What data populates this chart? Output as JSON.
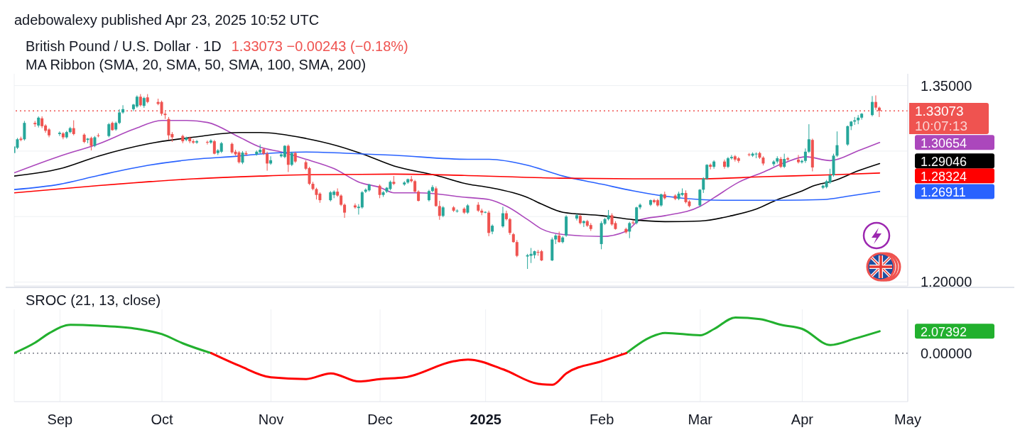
{
  "chart_data": [
    {
      "type": "candlestick",
      "title": "British Pound / U.S. Dollar · 1D",
      "subtitle": "1.33073 −0.00243 (−0.18%)",
      "annotations": [
        "adebowalexy published Apr 23, 2025 10:52 UTC",
        "MA Ribbon (SMA, 20, SMA, 50, SMA, 100, SMA, 200)",
        "10:07:13"
      ],
      "x": [
        "2024-08-20",
        "2024-08-21",
        "2024-08-22",
        "2024-08-23",
        "2024-08-26",
        "2024-08-27",
        "2024-08-28",
        "2024-08-29",
        "2024-08-30",
        "2024-09-02",
        "2024-09-03",
        "2024-09-04",
        "2024-09-05",
        "2024-09-06",
        "2024-09-09",
        "2024-09-10",
        "2024-09-11",
        "2024-09-12",
        "2024-09-13",
        "2024-09-16",
        "2024-09-17",
        "2024-09-18",
        "2024-09-19",
        "2024-09-20",
        "2024-09-23",
        "2024-09-24",
        "2024-09-25",
        "2024-09-26",
        "2024-09-27",
        "2024-09-30",
        "2024-10-01",
        "2024-10-02",
        "2024-10-03",
        "2024-10-04",
        "2024-10-07",
        "2024-10-08",
        "2024-10-09",
        "2024-10-10",
        "2024-10-11",
        "2024-10-14",
        "2024-10-15",
        "2024-10-16",
        "2024-10-17",
        "2024-10-18",
        "2024-10-21",
        "2024-10-22",
        "2024-10-23",
        "2024-10-24",
        "2024-10-25",
        "2024-10-28",
        "2024-10-29",
        "2024-10-30",
        "2024-10-31",
        "2024-11-01",
        "2024-11-04",
        "2024-11-05",
        "2024-11-06",
        "2024-11-07",
        "2024-11-08",
        "2024-11-11",
        "2024-11-12",
        "2024-11-13",
        "2024-11-14",
        "2024-11-15",
        "2024-11-18",
        "2024-11-19",
        "2024-11-20",
        "2024-11-21",
        "2024-11-22",
        "2024-11-25",
        "2024-11-26",
        "2024-11-27",
        "2024-11-28",
        "2024-11-29",
        "2024-12-02",
        "2024-12-03",
        "2024-12-04",
        "2024-12-05",
        "2024-12-06",
        "2024-12-09",
        "2024-12-10",
        "2024-12-11",
        "2024-12-12",
        "2024-12-13",
        "2024-12-16",
        "2024-12-17",
        "2024-12-18",
        "2024-12-19",
        "2024-12-20",
        "2024-12-23",
        "2024-12-24",
        "2024-12-26",
        "2024-12-27",
        "2024-12-30",
        "2024-12-31",
        "2025-01-01",
        "2025-01-02",
        "2025-01-03",
        "2025-01-06",
        "2025-01-07",
        "2025-01-08",
        "2025-01-09",
        "2025-01-10",
        "2025-01-13",
        "2025-01-14",
        "2025-01-15",
        "2025-01-16",
        "2025-01-17",
        "2025-01-20",
        "2025-01-21",
        "2025-01-22",
        "2025-01-23",
        "2025-01-24",
        "2025-01-27",
        "2025-01-28",
        "2025-01-29",
        "2025-01-30",
        "2025-01-31",
        "2025-02-03",
        "2025-02-04",
        "2025-02-05",
        "2025-02-06",
        "2025-02-07",
        "2025-02-10",
        "2025-02-11",
        "2025-02-12",
        "2025-02-13",
        "2025-02-14",
        "2025-02-17",
        "2025-02-18",
        "2025-02-19",
        "2025-02-20",
        "2025-02-21",
        "2025-02-24",
        "2025-02-25",
        "2025-02-26",
        "2025-02-27",
        "2025-02-28",
        "2025-03-03",
        "2025-03-04",
        "2025-03-05",
        "2025-03-06",
        "2025-03-07",
        "2025-03-10",
        "2025-03-11",
        "2025-03-12",
        "2025-03-13",
        "2025-03-14",
        "2025-03-17",
        "2025-03-18",
        "2025-03-19",
        "2025-03-20",
        "2025-03-21",
        "2025-03-24",
        "2025-03-25",
        "2025-03-26",
        "2025-03-27",
        "2025-03-28",
        "2025-03-31",
        "2025-04-01",
        "2025-04-02",
        "2025-04-03",
        "2025-04-04",
        "2025-04-07",
        "2025-04-08",
        "2025-04-09",
        "2025-04-10",
        "2025-04-11",
        "2025-04-14",
        "2025-04-15",
        "2025-04-16",
        "2025-04-17",
        "2025-04-18",
        "2025-04-21",
        "2025-04-22",
        "2025-04-23"
      ],
      "ohlc": [
        [
          1.2985,
          1.3045,
          1.2975,
          1.3035
        ],
        [
          1.3025,
          1.31,
          1.3015,
          1.309
        ],
        [
          1.3095,
          1.311,
          1.3075,
          1.3085
        ],
        [
          1.309,
          1.323,
          1.308,
          1.3215
        ],
        [
          1.3215,
          1.323,
          1.3185,
          1.3205
        ],
        [
          1.3195,
          1.3265,
          1.318,
          1.3255
        ],
        [
          1.325,
          1.3265,
          1.3175,
          1.319
        ],
        [
          1.3195,
          1.3205,
          1.314,
          1.3155
        ],
        [
          1.3165,
          1.3175,
          1.3105,
          1.312
        ],
        [
          1.313,
          1.315,
          1.3115,
          1.314
        ],
        [
          1.3135,
          1.3145,
          1.309,
          1.3105
        ],
        [
          1.3105,
          1.3155,
          1.3095,
          1.3145
        ],
        [
          1.3145,
          1.3185,
          1.3135,
          1.3175
        ],
        [
          1.3175,
          1.3235,
          1.312,
          1.313
        ],
        [
          1.3125,
          1.3135,
          1.306,
          1.307
        ],
        [
          1.3085,
          1.31,
          1.306,
          1.3095
        ],
        [
          1.31,
          1.311,
          1.3005,
          1.304
        ],
        [
          1.304,
          1.3115,
          1.303,
          1.3105
        ],
        [
          1.312,
          1.3135,
          1.3105,
          1.3115
        ],
        [
          1.3115,
          1.3215,
          1.3105,
          1.3205
        ],
        [
          1.3215,
          1.3225,
          1.3155,
          1.316
        ],
        [
          1.3165,
          1.3225,
          1.3155,
          1.3215
        ],
        [
          1.3215,
          1.332,
          1.3205,
          1.3295
        ],
        [
          1.3295,
          1.335,
          1.3285,
          1.332
        ],
        [
          1.332,
          1.336,
          1.3305,
          1.3355
        ],
        [
          1.334,
          1.3425,
          1.333,
          1.3415
        ],
        [
          1.3415,
          1.3435,
          1.334,
          1.335
        ],
        [
          1.3345,
          1.3415,
          1.333,
          1.3405
        ],
        [
          1.341,
          1.3435,
          1.3365,
          1.3375
        ],
        [
          1.3375,
          1.34,
          1.335,
          1.336
        ],
        [
          1.3375,
          1.3385,
          1.327,
          1.3285
        ],
        [
          1.3285,
          1.33,
          1.3245,
          1.3275
        ],
        [
          1.3245,
          1.326,
          1.3085,
          1.312
        ],
        [
          1.313,
          1.3145,
          1.307,
          1.3105
        ],
        [
          1.3115,
          1.3125,
          1.306,
          1.3075
        ],
        [
          1.3085,
          1.311,
          1.3075,
          1.31
        ],
        [
          1.31,
          1.311,
          1.306,
          1.3075
        ],
        [
          1.3075,
          1.309,
          1.3055,
          1.3065
        ],
        [
          1.3065,
          1.3085,
          1.3055,
          1.3075
        ],
        [
          1.307,
          1.308,
          1.305,
          1.3065
        ],
        [
          1.3065,
          1.309,
          1.3055,
          1.308
        ],
        [
          1.3075,
          1.3085,
          1.2975,
          1.298
        ],
        [
          1.2985,
          1.3015,
          1.297,
          1.3005
        ],
        [
          1.2995,
          1.307,
          1.2985,
          1.306
        ],
        [
          1.3055,
          1.3065,
          1.298,
          1.299
        ],
        [
          1.2995,
          1.301,
          1.2965,
          1.2975
        ],
        [
          1.299,
          1.3,
          1.2905,
          1.2915
        ],
        [
          1.2912,
          1.3,
          1.29,
          1.2988
        ],
        [
          1.2985,
          1.3,
          1.2965,
          1.2975
        ],
        [
          1.2975,
          1.3005,
          1.2965,
          1.2995
        ],
        [
          1.299,
          1.305,
          1.298,
          1.301
        ],
        [
          1.3015,
          1.3025,
          1.297,
          1.298
        ],
        [
          1.298,
          1.2995,
          1.285,
          1.2905
        ],
        [
          1.2905,
          1.296,
          1.2895,
          1.293
        ],
        [
          1.296,
          1.299,
          1.295,
          1.2975
        ],
        [
          1.2955,
          1.3045,
          1.2945,
          1.304
        ],
        [
          1.304,
          1.305,
          1.284,
          1.2895
        ],
        [
          1.2895,
          1.2995,
          1.2885,
          1.2985
        ],
        [
          1.2985,
          1.2995,
          1.291,
          1.292
        ],
        [
          1.2915,
          1.293,
          1.2855,
          1.2865
        ],
        [
          1.287,
          1.288,
          1.274,
          1.275
        ],
        [
          1.275,
          1.2765,
          1.27,
          1.271
        ],
        [
          1.271,
          1.272,
          1.263,
          1.2665
        ],
        [
          1.2675,
          1.2685,
          1.2605,
          1.2625
        ],
        [
          1.2625,
          1.2695,
          1.2615,
          1.2685
        ],
        [
          1.2665,
          1.27,
          1.264,
          1.269
        ],
        [
          1.269,
          1.2715,
          1.265,
          1.266
        ],
        [
          1.266,
          1.267,
          1.258,
          1.259
        ],
        [
          1.259,
          1.26,
          1.249,
          1.253
        ],
        [
          1.2585,
          1.26,
          1.256,
          1.257
        ],
        [
          1.2565,
          1.2595,
          1.2515,
          1.2575
        ],
        [
          1.257,
          1.2695,
          1.256,
          1.2685
        ],
        [
          1.269,
          1.2715,
          1.268,
          1.2705
        ],
        [
          1.27,
          1.275,
          1.269,
          1.2745
        ],
        [
          1.2735,
          1.2745,
          1.264,
          1.2665
        ],
        [
          1.2665,
          1.2695,
          1.265,
          1.2685
        ],
        [
          1.269,
          1.2725,
          1.268,
          1.272
        ],
        [
          1.271,
          1.2775,
          1.27,
          1.2765
        ],
        [
          1.2765,
          1.281,
          1.274,
          1.275
        ],
        [
          1.2745,
          1.277,
          1.2735,
          1.276
        ],
        [
          1.276,
          1.279,
          1.275,
          1.2785
        ],
        [
          1.2785,
          1.281,
          1.276,
          1.277
        ],
        [
          1.277,
          1.278,
          1.2685,
          1.269
        ],
        [
          1.269,
          1.27,
          1.2615,
          1.262
        ],
        [
          1.2625,
          1.2705,
          1.2615,
          1.2695
        ],
        [
          1.2695,
          1.274,
          1.2685,
          1.2725
        ],
        [
          1.2715,
          1.273,
          1.2575,
          1.258
        ],
        [
          1.258,
          1.262,
          1.2475,
          1.2505
        ],
        [
          1.2505,
          1.258,
          1.2495,
          1.257
        ],
        [
          1.257,
          1.258,
          1.2535,
          1.2545
        ],
        [
          1.254,
          1.2555,
          1.253,
          1.2545
        ],
        [
          1.256,
          1.257,
          1.252,
          1.253
        ],
        [
          1.253,
          1.2595,
          1.252,
          1.2585
        ],
        [
          1.259,
          1.261,
          1.2535,
          1.2545
        ],
        [
          1.2545,
          1.256,
          1.251,
          1.253
        ],
        [
          1.253,
          1.254,
          1.2525,
          1.2535
        ],
        [
          1.253,
          1.2545,
          1.235,
          1.2375
        ],
        [
          1.2385,
          1.244,
          1.2365,
          1.243
        ],
        [
          1.2425,
          1.2575,
          1.2415,
          1.2525
        ],
        [
          1.2525,
          1.2545,
          1.247,
          1.248
        ],
        [
          1.248,
          1.249,
          1.236,
          1.2375
        ],
        [
          1.2365,
          1.2375,
          1.23,
          1.2305
        ],
        [
          1.2305,
          1.232,
          1.219,
          1.22
        ],
        [
          1.2195,
          1.2215,
          1.21,
          1.2205
        ],
        [
          1.22,
          1.226,
          1.2145,
          1.2215
        ],
        [
          1.2205,
          1.224,
          1.218,
          1.2235
        ],
        [
          1.223,
          1.2245,
          1.22,
          1.2225
        ],
        [
          1.2235,
          1.2245,
          1.216,
          1.2165
        ],
        [
          1.2165,
          1.234,
          1.216,
          1.2325
        ],
        [
          1.2325,
          1.2365,
          1.229,
          1.2355
        ],
        [
          1.2355,
          1.2385,
          1.23,
          1.2305
        ],
        [
          1.2305,
          1.235,
          1.2295,
          1.234
        ],
        [
          1.2355,
          1.251,
          1.2345,
          1.25
        ],
        [
          1.2485,
          1.252,
          1.247,
          1.251
        ],
        [
          1.2505,
          1.2515,
          1.244,
          1.245
        ],
        [
          1.245,
          1.247,
          1.242,
          1.2465
        ],
        [
          1.2465,
          1.2475,
          1.242,
          1.243
        ],
        [
          1.2435,
          1.245,
          1.239,
          1.2405
        ],
        [
          1.229,
          1.2465,
          1.225,
          1.245
        ],
        [
          1.2445,
          1.249,
          1.2435,
          1.248
        ],
        [
          1.248,
          1.255,
          1.247,
          1.251
        ],
        [
          1.251,
          1.2525,
          1.243,
          1.244
        ],
        [
          1.245,
          1.2465,
          1.24,
          1.2405
        ],
        [
          1.2405,
          1.2415,
          1.237,
          1.238
        ],
        [
          1.2385,
          1.246,
          1.2335,
          1.245
        ],
        [
          1.2455,
          1.247,
          1.244,
          1.245
        ],
        [
          1.245,
          1.2575,
          1.244,
          1.257
        ],
        [
          1.257,
          1.26,
          1.2555,
          1.259
        ],
        [
          1.259,
          1.263,
          1.258,
          1.2625
        ],
        [
          1.2625,
          1.2635,
          1.26,
          1.261
        ],
        [
          1.2625,
          1.2635,
          1.2575,
          1.2585
        ],
        [
          1.2585,
          1.2675,
          1.2575,
          1.267
        ],
        [
          1.267,
          1.269,
          1.263,
          1.264
        ],
        [
          1.266,
          1.267,
          1.2625,
          1.2635
        ],
        [
          1.2635,
          1.269,
          1.2625,
          1.2675
        ],
        [
          1.2665,
          1.2715,
          1.2655,
          1.268
        ],
        [
          1.268,
          1.27,
          1.26,
          1.261
        ],
        [
          1.2615,
          1.2625,
          1.257,
          1.258
        ],
        [
          1.2585,
          1.271,
          1.2575,
          1.2705
        ],
        [
          1.2705,
          1.28,
          1.268,
          1.279
        ],
        [
          1.279,
          1.29,
          1.278,
          1.2895
        ],
        [
          1.2895,
          1.2905,
          1.286,
          1.288
        ],
        [
          1.288,
          1.293,
          1.2865,
          1.292
        ],
        [
          1.292,
          1.2935,
          1.2865,
          1.288
        ],
        [
          1.288,
          1.2955,
          1.287,
          1.2945
        ],
        [
          1.2945,
          1.297,
          1.2935,
          1.2955
        ],
        [
          1.296,
          1.297,
          1.292,
          1.2935
        ],
        [
          1.2945,
          1.2955,
          1.291,
          1.2925
        ],
        [
          1.2975,
          1.2985,
          1.296,
          1.297
        ],
        [
          1.2965,
          1.299,
          1.2955,
          1.298
        ],
        [
          1.2975,
          1.299,
          1.2945,
          1.298
        ],
        [
          1.2985,
          1.2995,
          1.294,
          1.295
        ],
        [
          1.295,
          1.296,
          1.289,
          1.2905
        ],
        [
          1.29,
          1.293,
          1.2885,
          1.292
        ],
        [
          1.292,
          1.296,
          1.2905,
          1.2945
        ],
        [
          1.294,
          1.2955,
          1.287,
          1.288
        ],
        [
          1.288,
          1.298,
          1.287,
          1.294
        ],
        [
          1.2945,
          1.2955,
          1.2925,
          1.2935
        ],
        [
          1.2935,
          1.297,
          1.2905,
          1.2915
        ],
        [
          1.2915,
          1.2935,
          1.2905,
          1.2925
        ],
        [
          1.2925,
          1.302,
          1.291,
          1.2995
        ],
        [
          1.2995,
          1.3205,
          1.2985,
          1.309
        ],
        [
          1.3085,
          1.3095,
          1.2845,
          1.2875
        ],
        [
          1.272,
          1.2745,
          1.271,
          1.2735
        ],
        [
          1.2725,
          1.278,
          1.2715,
          1.277
        ],
        [
          1.276,
          1.2865,
          1.275,
          1.2815
        ],
        [
          1.2815,
          1.298,
          1.2805,
          1.2965
        ],
        [
          1.2965,
          1.315,
          1.2955,
          1.3045
        ],
        [
          1.305,
          1.3195,
          1.304,
          1.319
        ],
        [
          1.319,
          1.323,
          1.316,
          1.3225
        ],
        [
          1.3225,
          1.326,
          1.32,
          1.3235
        ],
        [
          1.3235,
          1.3275,
          1.3205,
          1.3255
        ],
        [
          1.3255,
          1.329,
          1.324,
          1.3285
        ],
        [
          1.3275,
          1.342,
          1.3265,
          1.3375
        ],
        [
          1.3375,
          1.3425,
          1.3315,
          1.33316
        ],
        [
          1.33316,
          1.334,
          1.326,
          1.33073
        ]
      ],
      "series": [
        {
          "type": "line",
          "color": "#ab47bc",
          "x": [
            "2024-08-20",
            "2024-09-02",
            "2024-09-13",
            "2024-09-23",
            "2024-10-01",
            "2024-10-08",
            "2024-10-14",
            "2024-10-23",
            "2024-10-29",
            "2024-11-04",
            "2024-11-11",
            "2024-11-19",
            "2024-11-26",
            "2024-12-02",
            "2024-12-06",
            "2024-12-13",
            "2024-12-27",
            "2025-01-02",
            "2025-01-07",
            "2025-01-13",
            "2025-01-17",
            "2025-01-23",
            "2025-02-03",
            "2025-02-10",
            "2025-02-14",
            "2025-02-21",
            "2025-03-03",
            "2025-03-07",
            "2025-03-14",
            "2025-03-21",
            "2025-03-27",
            "2025-04-02",
            "2025-04-09",
            "2025-04-17",
            "2025-04-23"
          ],
          "values": [
            1.2834,
            1.2962,
            1.3055,
            1.3167,
            1.3234,
            1.3234,
            1.3218,
            1.3106,
            1.3029,
            1.2993,
            1.2937,
            1.2865,
            1.2763,
            1.2722,
            1.2681,
            1.2681,
            1.2645,
            1.263,
            1.2578,
            1.2476,
            1.2404,
            1.2363,
            1.2348,
            1.2389,
            1.2476,
            1.2507,
            1.2578,
            1.2645,
            1.2763,
            1.284,
            1.2911,
            1.2957,
            1.2927,
            1.3003,
            1.30654
          ]
        },
        {
          "type": "line",
          "color": "#000000",
          "x": [
            "2024-08-20",
            "2024-09-02",
            "2024-09-13",
            "2024-09-27",
            "2024-10-10",
            "2024-10-23",
            "2024-10-29",
            "2024-11-11",
            "2024-11-20",
            "2024-11-27",
            "2024-12-06",
            "2024-12-18",
            "2024-12-27",
            "2025-01-02",
            "2025-01-13",
            "2025-01-17",
            "2025-01-23",
            "2025-02-03",
            "2025-02-12",
            "2025-02-21",
            "2025-03-03",
            "2025-03-12",
            "2025-03-19",
            "2025-03-25",
            "2025-04-01",
            "2025-04-04",
            "2025-04-10",
            "2025-04-17",
            "2025-04-23"
          ],
          "values": [
            1.2809,
            1.2865,
            1.2962,
            1.3055,
            1.3106,
            1.3142,
            1.3142,
            1.3096,
            1.3039,
            1.2978,
            1.2886,
            1.2814,
            1.2747,
            1.2722,
            1.2645,
            1.2594,
            1.2532,
            1.2507,
            1.2476,
            1.2461,
            1.2466,
            1.2507,
            1.2558,
            1.263,
            1.2696,
            1.2732,
            1.2773,
            1.285,
            1.29046
          ]
        },
        {
          "type": "line",
          "color": "#2962ff",
          "x": [
            "2024-08-20",
            "2024-09-02",
            "2024-09-13",
            "2024-09-27",
            "2024-10-10",
            "2024-10-23",
            "2024-10-29",
            "2024-11-11",
            "2024-11-27",
            "2024-12-06",
            "2024-12-27",
            "2025-01-02",
            "2025-01-13",
            "2025-01-23",
            "2025-02-03",
            "2025-02-12",
            "2025-02-21",
            "2025-03-03",
            "2025-03-12",
            "2025-03-25",
            "2025-04-07",
            "2025-04-14",
            "2025-04-23"
          ],
          "values": [
            1.2706,
            1.2747,
            1.2814,
            1.2891,
            1.2937,
            1.2962,
            1.2978,
            1.2993,
            1.2978,
            1.2968,
            1.2937,
            1.2937,
            1.2891,
            1.2809,
            1.2747,
            1.2696,
            1.2655,
            1.263,
            1.2624,
            1.2624,
            1.263,
            1.2655,
            1.26911
          ]
        },
        {
          "type": "line",
          "color": "#ff0000",
          "x": [
            "2024-08-20",
            "2024-09-13",
            "2024-10-10",
            "2024-10-29",
            "2024-11-11",
            "2024-12-06",
            "2024-12-26",
            "2025-01-22",
            "2025-02-12",
            "2025-03-03",
            "2025-03-21",
            "2025-04-10",
            "2025-04-23"
          ],
          "values": [
            1.2681,
            1.2737,
            1.2788,
            1.2809,
            1.2819,
            1.2824,
            1.2814,
            1.2793,
            1.2788,
            1.2788,
            1.2804,
            1.2819,
            1.28324
          ]
        }
      ],
      "ref_lines": [
        {
          "axis": "y",
          "value": 1.33073,
          "label": "1.33073",
          "color": "#ef5350",
          "line_style": "dotted"
        }
      ],
      "xlim": [
        "2024-08-20",
        "2025-05-01"
      ],
      "xticks": [
        {
          "value": "2024-09-02",
          "label": null
        },
        {
          "value": "2024-10-01",
          "label": null
        },
        {
          "value": "2024-11-01",
          "label": null
        },
        {
          "value": "2024-12-02",
          "label": null
        },
        {
          "value": "2025-01-01",
          "label": null
        },
        {
          "value": "2025-02-03",
          "label": null
        },
        {
          "value": "2025-03-03",
          "label": null
        },
        {
          "value": "2025-04-01",
          "label": null
        },
        {
          "value": "2025-05-01",
          "label": null
        }
      ],
      "ylim": [
        1.197,
        1.359
      ],
      "yticks": [
        {
          "value": 1.2,
          "label": "1.20000"
        },
        {
          "value": 1.25,
          "label": null
        },
        {
          "value": 1.26911,
          "label": "1.26911"
        },
        {
          "value": 1.28324,
          "label": "1.28324"
        },
        {
          "value": 1.29046,
          "label": "1.29046"
        },
        {
          "value": 1.3,
          "label": null
        },
        {
          "value": 1.30654,
          "label": "1.30654"
        },
        {
          "value": 1.35,
          "label": "1.35000"
        }
      ],
      "grid": true,
      "tick_labels": "y"
    },
    {
      "type": "line",
      "title": "SROC (21, 13, close)",
      "x": [
        "2024-08-20",
        "2024-08-26",
        "2024-08-30",
        "2024-09-05",
        "2024-09-13",
        "2024-09-24",
        "2024-10-01",
        "2024-10-07",
        "2024-10-15",
        "2024-10-23",
        "2024-11-01",
        "2024-11-11",
        "2024-11-18",
        "2024-11-26",
        "2024-12-02",
        "2024-12-09",
        "2024-12-23",
        "2024-12-27",
        "2025-01-06",
        "2025-01-16",
        "2025-01-20",
        "2025-01-24",
        "2025-02-03",
        "2025-02-10",
        "2025-02-17",
        "2025-02-21",
        "2025-03-03",
        "2025-03-07",
        "2025-03-13",
        "2025-03-20",
        "2025-03-26",
        "2025-04-01",
        "2025-04-09",
        "2025-04-16",
        "2025-04-23"
      ],
      "series": [
        {
          "color": "#22b02e",
          "values": [
            0,
            1.0,
            1.9,
            2.69,
            2.6,
            2.3,
            1.8,
            0.92,
            0,
            null,
            null,
            null,
            null,
            null,
            null,
            null,
            null,
            null,
            null,
            null,
            null,
            null,
            null,
            0,
            1.54,
            1.92,
            1.69,
            2.3,
            3.38,
            3.23,
            2.69,
            2.3,
            0.77,
            1.38,
            2.07392
          ]
        },
        {
          "color": "#ff0000",
          "values": [
            null,
            null,
            null,
            null,
            null,
            null,
            null,
            null,
            0,
            -1.2,
            -2.3,
            -2.46,
            -1.92,
            -2.69,
            -2.46,
            -2.3,
            -0.77,
            -0.61,
            -1.54,
            -2.92,
            -3.0,
            -1.9,
            -0.77,
            0,
            null,
            null,
            null,
            null,
            null,
            null,
            null,
            null,
            null,
            null,
            null
          ]
        }
      ],
      "ylim": [
        -4.6,
        4.15
      ],
      "yticks": [
        {
          "value": 0,
          "label": "0.00000"
        },
        {
          "value": 2.07392,
          "label": "2.07392"
        }
      ],
      "ref_lines": [
        {
          "axis": "y",
          "value": 0,
          "color": "#787b86",
          "line_style": "dotted"
        }
      ],
      "xlim": [
        "2024-08-20",
        "2025-05-01"
      ],
      "xticks": [
        {
          "value": "2024-09-02",
          "label": "Sep"
        },
        {
          "value": "2024-10-01",
          "label": "Oct"
        },
        {
          "value": "2024-11-01",
          "label": "Nov"
        },
        {
          "value": "2024-12-02",
          "label": "Dec"
        },
        {
          "value": "2025-01-01",
          "label": "2025"
        },
        {
          "value": "2025-02-03",
          "label": "Feb"
        },
        {
          "value": "2025-03-03",
          "label": "Mar"
        },
        {
          "value": "2025-04-01",
          "label": "Apr"
        },
        {
          "value": "2025-05-01",
          "label": "May"
        }
      ],
      "grid": "x"
    }
  ]
}
